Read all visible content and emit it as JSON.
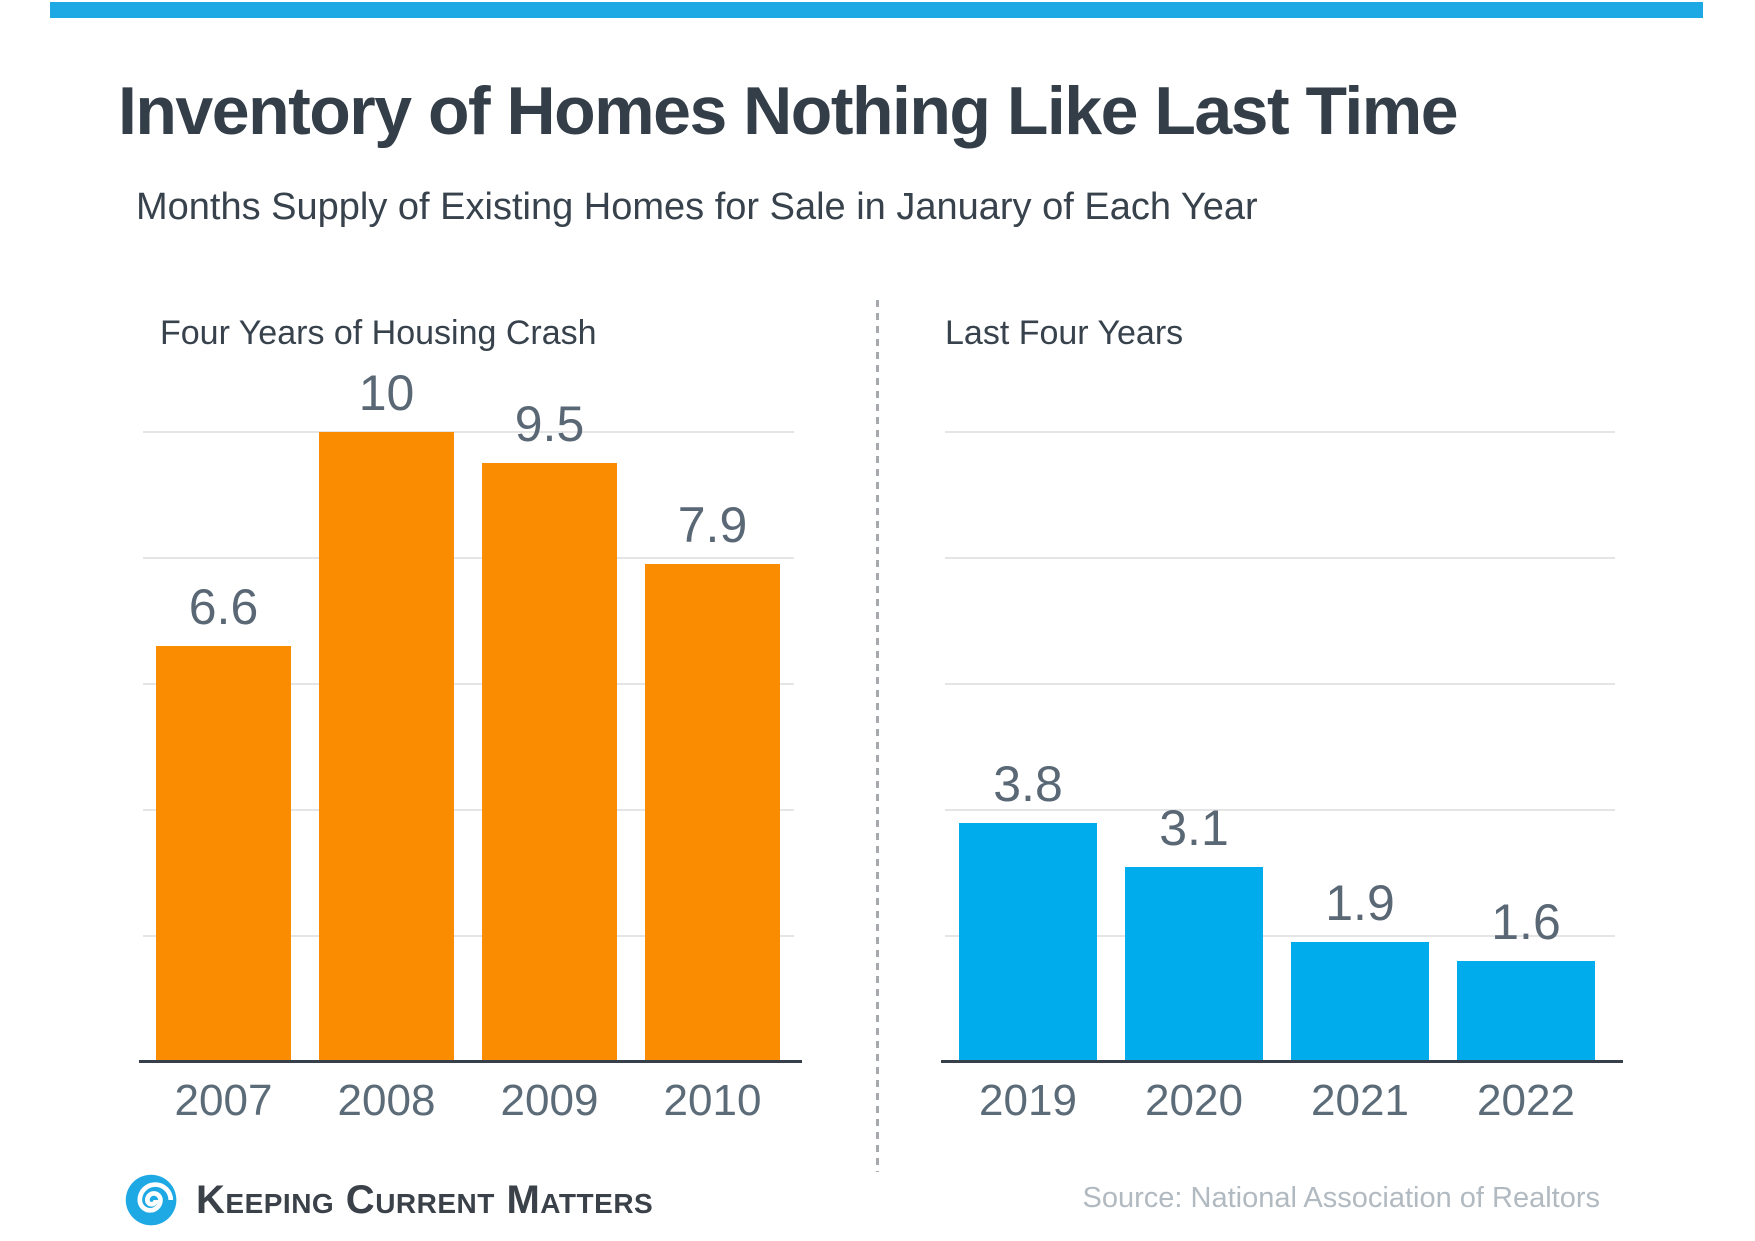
{
  "page": {
    "title": "Inventory of Homes Nothing Like Last Time",
    "subtitle": "Months Supply of Existing Homes for Sale in January of Each Year",
    "brand": "Keeping Current Matters",
    "source": "Source: National Association of Realtors",
    "accent_stripe_color": "#1FA9E4",
    "divider_style": "vertical-dashed-gray"
  },
  "chart_data": [
    {
      "type": "bar",
      "title": "Four Years of Housing Crash",
      "categories": [
        "2007",
        "2008",
        "2009",
        "2010"
      ],
      "values": [
        6.6,
        10,
        9.5,
        7.9
      ],
      "bar_color": "#F98C00",
      "value_label_color": "#5A6876",
      "xlabel": "",
      "ylabel": "",
      "ylim": [
        0,
        11
      ],
      "gridline_values": [
        2,
        4,
        6,
        8,
        10
      ],
      "grid_on": true,
      "legend": "none",
      "data_labels": "above-bars"
    },
    {
      "type": "bar",
      "title": "Last Four Years",
      "categories": [
        "2019",
        "2020",
        "2021",
        "2022"
      ],
      "values": [
        3.8,
        3.1,
        1.9,
        1.6
      ],
      "bar_color": "#00ACEC",
      "value_label_color": "#5A6876",
      "xlabel": "",
      "ylabel": "",
      "ylim": [
        0,
        11
      ],
      "gridline_values": [
        2,
        4,
        6,
        8,
        10
      ],
      "grid_on": true,
      "legend": "none",
      "data_labels": "above-bars"
    }
  ]
}
